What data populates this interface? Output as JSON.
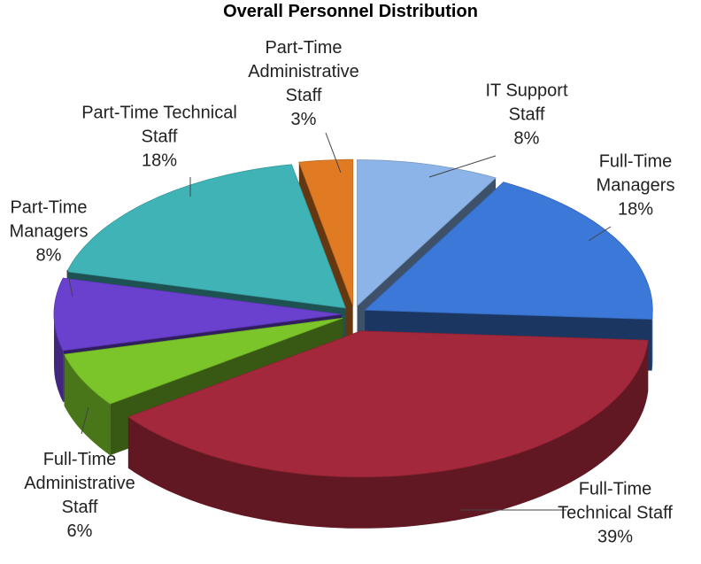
{
  "chart_data": {
    "type": "pie3d",
    "title": "Overall Personnel Distribution",
    "categories": [
      "IT Support Staff",
      "Full-Time Managers",
      "Full-Time Technical Staff",
      "Full-Time Administrative Staff",
      "Part-Time Managers",
      "Part-Time Technical Staff",
      "Part-Time Administrative Staff"
    ],
    "values": [
      8,
      18,
      39,
      6,
      8,
      18,
      3
    ],
    "value_labels": [
      "8%",
      "18%",
      "39%",
      "6%",
      "8%",
      "18%",
      "3%"
    ],
    "colors": [
      "#8db4e8",
      "#3b78d8",
      "#a3283b",
      "#7bc52b",
      "#6a40cf",
      "#40b3b6",
      "#e07b24"
    ]
  }
}
